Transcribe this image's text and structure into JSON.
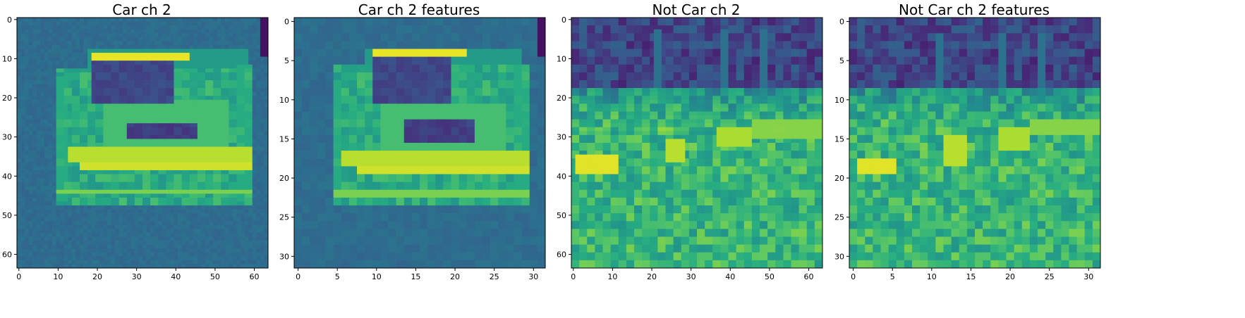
{
  "chart_data": [
    {
      "type": "heatmap",
      "title": "Car ch 2",
      "colormap": "viridis",
      "grid_size": 64,
      "x_ticks": [
        0,
        10,
        20,
        30,
        40,
        50,
        60
      ],
      "y_ticks": [
        0,
        10,
        20,
        30,
        40,
        50,
        60
      ],
      "xlim": [
        -0.5,
        63.5
      ],
      "ylim": [
        63.5,
        -0.5
      ],
      "pattern": "car"
    },
    {
      "type": "heatmap",
      "title": "Car ch 2 features",
      "colormap": "viridis",
      "grid_size": 32,
      "x_ticks": [
        0,
        5,
        10,
        15,
        20,
        25,
        30
      ],
      "y_ticks": [
        0,
        5,
        10,
        15,
        20,
        25,
        30
      ],
      "xlim": [
        -0.5,
        31.5
      ],
      "ylim": [
        31.5,
        -0.5
      ],
      "pattern": "car"
    },
    {
      "type": "heatmap",
      "title": "Not Car ch 2",
      "colormap": "viridis",
      "grid_size": 64,
      "x_ticks": [
        0,
        10,
        20,
        30,
        40,
        50,
        60
      ],
      "y_ticks": [
        0,
        10,
        20,
        30,
        40,
        50,
        60
      ],
      "xlim": [
        -0.5,
        63.5
      ],
      "ylim": [
        63.5,
        -0.5
      ],
      "pattern": "notcar"
    },
    {
      "type": "heatmap",
      "title": "Not Car ch 2 features",
      "colormap": "viridis",
      "grid_size": 32,
      "x_ticks": [
        0,
        5,
        10,
        15,
        20,
        25,
        30
      ],
      "y_ticks": [
        0,
        5,
        10,
        15,
        20,
        25,
        30
      ],
      "xlim": [
        -0.5,
        31.5
      ],
      "ylim": [
        31.5,
        -0.5
      ],
      "pattern": "notcar"
    }
  ]
}
